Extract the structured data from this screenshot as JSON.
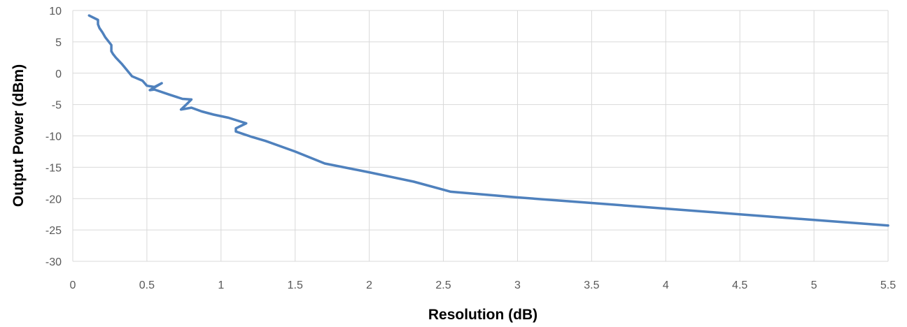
{
  "chart_data": {
    "type": "line",
    "title": "",
    "xlabel": "Resolution (dB)",
    "ylabel": "Output Power (dBm)",
    "xlim": [
      0,
      5.5
    ],
    "ylim": [
      -30,
      10
    ],
    "xticks": [
      0,
      0.5,
      1,
      1.5,
      2,
      2.5,
      3,
      3.5,
      4,
      4.5,
      5,
      5.5
    ],
    "xtick_labels": [
      "0",
      "0.5",
      "1",
      "1.5",
      "2",
      "2.5",
      "3",
      "3.5",
      "4",
      "4.5",
      "5",
      "5.5"
    ],
    "yticks": [
      10,
      5,
      0,
      -5,
      -10,
      -15,
      -20,
      -25,
      -30
    ],
    "ytick_labels": [
      "10",
      "5",
      "0",
      "-5",
      "-10",
      "-15",
      "-20",
      "-25",
      "-30"
    ],
    "grid": true,
    "legend": "none",
    "series": [
      {
        "color": "#4f81bd",
        "x": [
          0.11,
          0.17,
          0.17,
          0.18,
          0.2,
          0.22,
          0.26,
          0.26,
          0.27,
          0.29,
          0.33,
          0.4,
          0.47,
          0.5,
          0.55,
          0.6,
          0.52,
          0.55,
          0.65,
          0.74,
          0.8,
          0.77,
          0.73,
          0.8,
          0.87,
          0.95,
          1.05,
          1.17,
          1.1,
          1.1,
          1.15,
          1.2,
          1.3,
          1.5,
          1.7,
          2.0,
          2.3,
          2.55,
          3.0,
          3.5,
          4.0,
          4.5,
          5.0,
          5.5
        ],
        "y": [
          9.2,
          8.5,
          7.8,
          7.2,
          6.5,
          5.7,
          4.5,
          3.5,
          3.1,
          2.5,
          1.5,
          -0.5,
          -1.2,
          -2.0,
          -2.2,
          -1.6,
          -2.7,
          -2.6,
          -3.4,
          -4.1,
          -4.2,
          -4.9,
          -5.8,
          -5.5,
          -6.1,
          -6.6,
          -7.1,
          -8.0,
          -8.8,
          -9.3,
          -9.7,
          -10.1,
          -10.8,
          -12.5,
          -14.4,
          -15.8,
          -17.3,
          -18.9,
          -19.8,
          -20.7,
          -21.6,
          -22.5,
          -23.4,
          -24.3
        ]
      }
    ]
  }
}
